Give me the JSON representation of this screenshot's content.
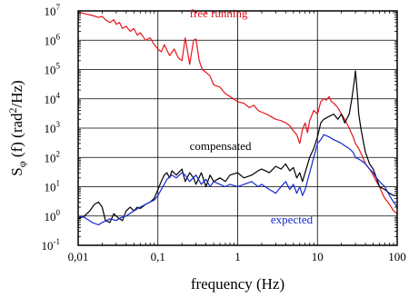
{
  "chart_data": {
    "type": "line",
    "xlabel": "frequency (Hz)",
    "ylabel": {
      "pre": "S",
      "sub": "φ",
      "mid": " (f) (rad",
      "sup": "2",
      "post": "/Hz)"
    },
    "x_scale": "log",
    "y_scale": "log",
    "xlim": [
      0.01,
      100
    ],
    "ylim": [
      0.1,
      10000000
    ],
    "grid": true,
    "x_ticks": [
      {
        "value": 0.01,
        "label": "0,01"
      },
      {
        "value": 0.1,
        "label": "0,1"
      },
      {
        "value": 1,
        "label": "1"
      },
      {
        "value": 10,
        "label": "10"
      },
      {
        "value": 100,
        "label": "100"
      }
    ],
    "y_ticks": [
      {
        "value": 0.1,
        "base": "10",
        "exp": "-1"
      },
      {
        "value": 1,
        "base": "10",
        "exp": "0"
      },
      {
        "value": 10,
        "base": "10",
        "exp": "1"
      },
      {
        "value": 100,
        "base": "10",
        "exp": "2"
      },
      {
        "value": 1000,
        "base": "10",
        "exp": "3"
      },
      {
        "value": 10000,
        "base": "10",
        "exp": "4"
      },
      {
        "value": 100000,
        "base": "10",
        "exp": "5"
      },
      {
        "value": 1000000,
        "base": "10",
        "exp": "6"
      },
      {
        "value": 10000000,
        "base": "10",
        "exp": "7"
      }
    ],
    "series": [
      {
        "name": "free running",
        "color": "#e8141c",
        "x": [
          0.01,
          0.012,
          0.015,
          0.018,
          0.02,
          0.022,
          0.025,
          0.028,
          0.03,
          0.033,
          0.036,
          0.04,
          0.045,
          0.05,
          0.055,
          0.06,
          0.07,
          0.08,
          0.09,
          0.1,
          0.11,
          0.12,
          0.14,
          0.16,
          0.18,
          0.2,
          0.22,
          0.25,
          0.28,
          0.3,
          0.33,
          0.36,
          0.4,
          0.45,
          0.5,
          0.6,
          0.7,
          0.8,
          1.0,
          1.2,
          1.4,
          1.6,
          1.8,
          2.0,
          2.3,
          2.6,
          3.0,
          3.5,
          4.0,
          4.5,
          5.0,
          5.5,
          6.0,
          6.5,
          7.0,
          7.5,
          8.0,
          9.0,
          10.0,
          11.0,
          12.0,
          13.0,
          14.0,
          15.0,
          16.0,
          18.0,
          20.0,
          22.0,
          25.0,
          28.0,
          30.0,
          33.0,
          36.0,
          40.0,
          45.0,
          50.0,
          55.0,
          60.0,
          65.0,
          70.0,
          80.0,
          90.0,
          100.0
        ],
        "y": [
          9000000,
          8000000,
          7000000,
          6000000,
          6500000,
          5000000,
          4000000,
          5000000,
          3500000,
          4000000,
          2500000,
          3000000,
          2000000,
          2500000,
          1500000,
          1800000,
          1000000,
          1200000,
          700000,
          500000,
          400000,
          700000,
          300000,
          500000,
          250000,
          200000,
          1200000,
          150000,
          1000000,
          1100000,
          200000,
          100000,
          80000,
          60000,
          30000,
          25000,
          15000,
          12000,
          8000,
          7000,
          5000,
          6000,
          4000,
          3500,
          3000,
          2500,
          2000,
          1800,
          1500,
          1200,
          800,
          600,
          300,
          900,
          1500,
          700,
          1800,
          4000,
          3000,
          8000,
          10000,
          9000,
          12000,
          8000,
          7000,
          5000,
          3000,
          2000,
          1000,
          500,
          300,
          200,
          120,
          60,
          40,
          25,
          15,
          10,
          6,
          4,
          2.5,
          1.5,
          1.2
        ]
      },
      {
        "name": "compensated",
        "color": "#000000",
        "x": [
          0.01,
          0.011,
          0.012,
          0.014,
          0.016,
          0.018,
          0.02,
          0.022,
          0.025,
          0.028,
          0.03,
          0.033,
          0.036,
          0.04,
          0.045,
          0.05,
          0.055,
          0.06,
          0.07,
          0.08,
          0.09,
          0.1,
          0.11,
          0.12,
          0.13,
          0.14,
          0.15,
          0.17,
          0.2,
          0.22,
          0.25,
          0.28,
          0.3,
          0.35,
          0.4,
          0.45,
          0.5,
          0.6,
          0.7,
          0.8,
          1.0,
          1.2,
          1.5,
          1.8,
          2.0,
          2.5,
          3.0,
          3.5,
          4.0,
          4.5,
          5.0,
          5.5,
          6.0,
          6.5,
          7.0,
          8.0,
          9.0,
          10.0,
          11.0,
          12.0,
          14.0,
          16.0,
          18.0,
          20.0,
          22.0,
          25.0,
          27.0,
          29.0,
          30.0,
          31.0,
          32.0,
          33.0,
          35.0,
          38.0,
          40.0,
          45.0,
          50.0,
          55.0,
          60.0,
          70.0,
          80.0,
          90.0,
          100.0
        ],
        "y": [
          0.8,
          0.9,
          1.0,
          1.5,
          2.5,
          3.0,
          2.0,
          0.7,
          0.6,
          1.2,
          1.0,
          0.8,
          0.7,
          1.5,
          2.0,
          1.5,
          2.0,
          1.8,
          2.5,
          3.0,
          4.0,
          8.0,
          15.0,
          25.0,
          30.0,
          20.0,
          35.0,
          25.0,
          40.0,
          15.0,
          30.0,
          20.0,
          12.0,
          30.0,
          10.0,
          25.0,
          15.0,
          20.0,
          15.0,
          25.0,
          30.0,
          20.0,
          25.0,
          35.0,
          40.0,
          30.0,
          50.0,
          40.0,
          60.0,
          35.0,
          45.0,
          20.0,
          30.0,
          15.0,
          30.0,
          100.0,
          200.0,
          500.0,
          1500.0,
          2000.0,
          2500.0,
          3000.0,
          2000.0,
          3000.0,
          1500.0,
          3000.0,
          10000.0,
          40000.0,
          90000.0,
          30000.0,
          10000.0,
          3000.0,
          1000.0,
          300.0,
          150.0,
          60.0,
          40.0,
          20.0,
          10.0,
          8.0,
          6.0,
          5.0,
          5.0
        ]
      },
      {
        "name": "expected",
        "color": "#1428d2",
        "x": [
          0.01,
          0.012,
          0.015,
          0.018,
          0.02,
          0.025,
          0.03,
          0.035,
          0.04,
          0.05,
          0.06,
          0.07,
          0.08,
          0.09,
          0.1,
          0.11,
          0.12,
          0.13,
          0.15,
          0.17,
          0.2,
          0.22,
          0.25,
          0.3,
          0.35,
          0.4,
          0.45,
          0.5,
          0.6,
          0.7,
          0.8,
          1.0,
          1.2,
          1.5,
          1.8,
          2.0,
          2.5,
          3.0,
          3.5,
          4.0,
          4.5,
          5.0,
          5.5,
          6.0,
          6.5,
          7.0,
          8.0,
          9.0,
          10.0,
          11.0,
          12.0,
          14.0,
          16.0,
          18.0,
          20.0,
          22.0,
          25.0,
          28.0,
          30.0,
          35.0,
          40.0,
          45.0,
          50.0,
          55.0,
          60.0,
          70.0,
          80.0,
          90.0,
          100.0
        ],
        "y": [
          1.0,
          0.9,
          0.6,
          0.5,
          0.6,
          0.8,
          0.7,
          0.9,
          1.0,
          1.5,
          2.0,
          2.5,
          3.0,
          3.5,
          5.0,
          8.0,
          12.0,
          18.0,
          25.0,
          20.0,
          30.0,
          25.0,
          15.0,
          25.0,
          12.0,
          18.0,
          10.0,
          15.0,
          12.0,
          10.0,
          12.0,
          10.0,
          12.0,
          15.0,
          10.0,
          12.0,
          8.0,
          6.0,
          10.0,
          15.0,
          8.0,
          12.0,
          6.0,
          10.0,
          5.0,
          8.0,
          30.0,
          100.0,
          300.0,
          400.0,
          600.0,
          500.0,
          400.0,
          350.0,
          300.0,
          250.0,
          200.0,
          150.0,
          100.0,
          80.0,
          60.0,
          40.0,
          30.0,
          20.0,
          15.0,
          10.0,
          5.0,
          3.0,
          2.0
        ]
      }
    ],
    "annotations": [
      {
        "text": "free running",
        "x": 0.25,
        "y": 6000000,
        "color": "#e8141c"
      },
      {
        "text": "compensated",
        "x": 0.25,
        "y": 180,
        "color": "#000000"
      },
      {
        "text": "expected",
        "x": 2.6,
        "y": 0.55,
        "color": "#1428d2"
      }
    ]
  }
}
